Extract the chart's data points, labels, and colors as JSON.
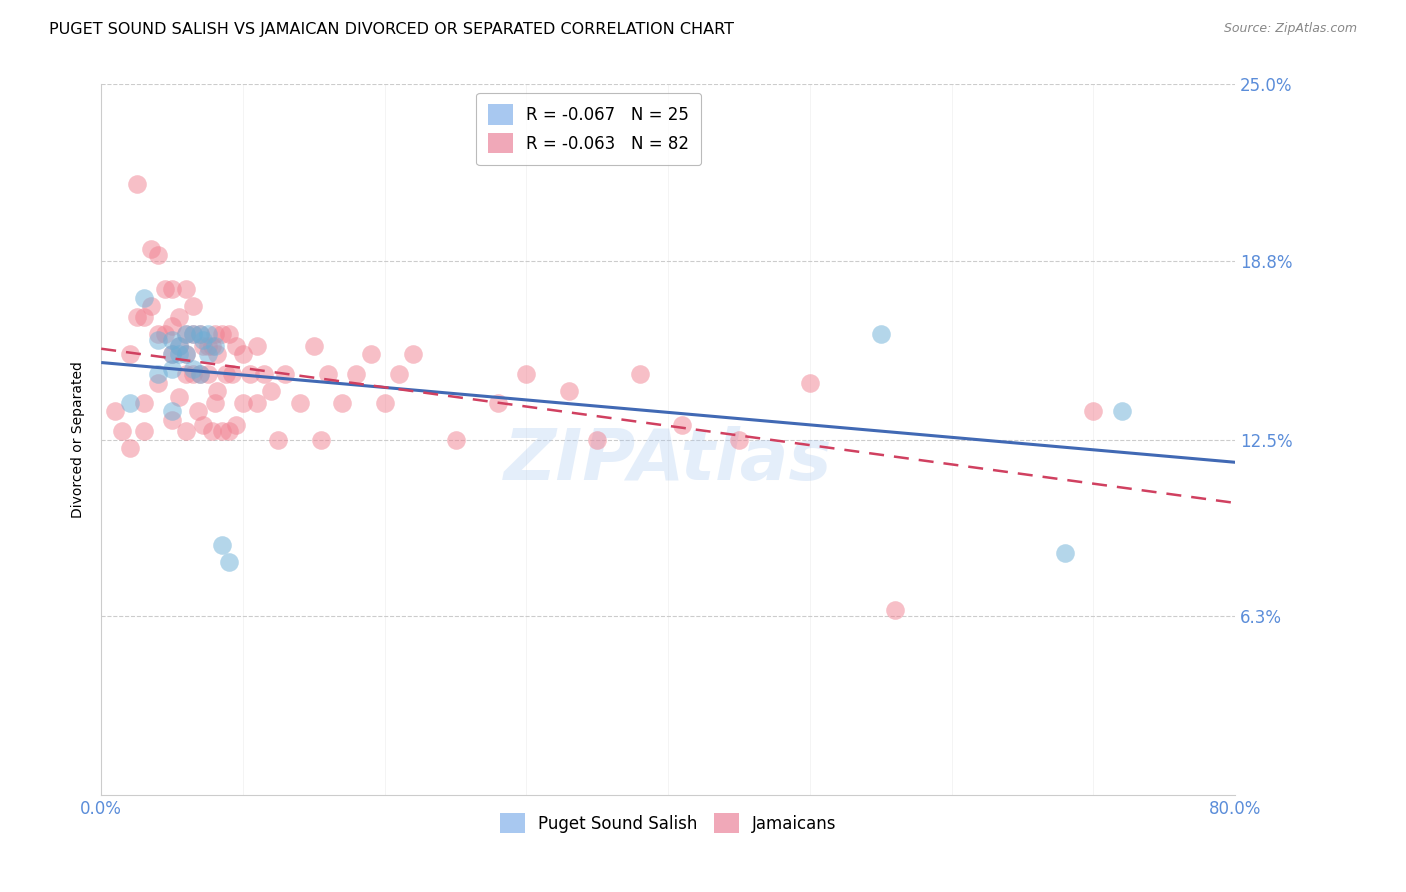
{
  "title": "PUGET SOUND SALISH VS JAMAICAN DIVORCED OR SEPARATED CORRELATION CHART",
  "source": "Source: ZipAtlas.com",
  "ylabel": "Divorced or Separated",
  "watermark": "ZIPAtlas",
  "xlim": [
    0.0,
    0.8
  ],
  "ylim": [
    0.0,
    0.25
  ],
  "yticks": [
    0.063,
    0.125,
    0.188,
    0.25
  ],
  "ytick_labels": [
    "6.3%",
    "12.5%",
    "18.8%",
    "25.0%"
  ],
  "legend1_label": "R = -0.067   N = 25",
  "legend2_label": "R = -0.063   N = 82",
  "legend1_color": "#a8c8f0",
  "legend2_color": "#f0a8b8",
  "series1_color": "#6baed6",
  "series2_color": "#f08090",
  "line1_color": "#4169b4",
  "line2_color": "#d04060",
  "right_tick_color": "#5b8dd9",
  "series1_x": [
    0.02,
    0.03,
    0.04,
    0.04,
    0.05,
    0.05,
    0.05,
    0.05,
    0.055,
    0.055,
    0.06,
    0.06,
    0.065,
    0.065,
    0.07,
    0.07,
    0.072,
    0.075,
    0.075,
    0.08,
    0.085,
    0.09,
    0.55,
    0.68,
    0.72
  ],
  "series1_y": [
    0.138,
    0.175,
    0.16,
    0.148,
    0.16,
    0.155,
    0.15,
    0.135,
    0.158,
    0.155,
    0.162,
    0.155,
    0.162,
    0.15,
    0.162,
    0.148,
    0.16,
    0.162,
    0.155,
    0.158,
    0.088,
    0.082,
    0.162,
    0.085,
    0.135
  ],
  "series2_x": [
    0.01,
    0.015,
    0.02,
    0.02,
    0.025,
    0.025,
    0.03,
    0.03,
    0.03,
    0.035,
    0.035,
    0.04,
    0.04,
    0.04,
    0.045,
    0.045,
    0.05,
    0.05,
    0.05,
    0.05,
    0.055,
    0.055,
    0.055,
    0.06,
    0.06,
    0.06,
    0.06,
    0.06,
    0.065,
    0.065,
    0.065,
    0.068,
    0.07,
    0.07,
    0.072,
    0.072,
    0.075,
    0.075,
    0.078,
    0.078,
    0.08,
    0.08,
    0.082,
    0.082,
    0.085,
    0.085,
    0.088,
    0.09,
    0.09,
    0.092,
    0.095,
    0.095,
    0.1,
    0.1,
    0.105,
    0.11,
    0.11,
    0.115,
    0.12,
    0.125,
    0.13,
    0.14,
    0.15,
    0.155,
    0.16,
    0.17,
    0.18,
    0.19,
    0.2,
    0.21,
    0.22,
    0.25,
    0.28,
    0.3,
    0.33,
    0.35,
    0.38,
    0.41,
    0.45,
    0.5,
    0.56,
    0.7
  ],
  "series2_y": [
    0.135,
    0.128,
    0.155,
    0.122,
    0.215,
    0.168,
    0.138,
    0.168,
    0.128,
    0.192,
    0.172,
    0.19,
    0.162,
    0.145,
    0.178,
    0.162,
    0.178,
    0.165,
    0.155,
    0.132,
    0.168,
    0.158,
    0.14,
    0.178,
    0.162,
    0.155,
    0.148,
    0.128,
    0.172,
    0.162,
    0.148,
    0.135,
    0.162,
    0.148,
    0.158,
    0.13,
    0.158,
    0.148,
    0.158,
    0.128,
    0.162,
    0.138,
    0.155,
    0.142,
    0.162,
    0.128,
    0.148,
    0.162,
    0.128,
    0.148,
    0.158,
    0.13,
    0.155,
    0.138,
    0.148,
    0.158,
    0.138,
    0.148,
    0.142,
    0.125,
    0.148,
    0.138,
    0.158,
    0.125,
    0.148,
    0.138,
    0.148,
    0.155,
    0.138,
    0.148,
    0.155,
    0.125,
    0.138,
    0.148,
    0.142,
    0.125,
    0.148,
    0.13,
    0.125,
    0.145,
    0.065,
    0.135
  ]
}
